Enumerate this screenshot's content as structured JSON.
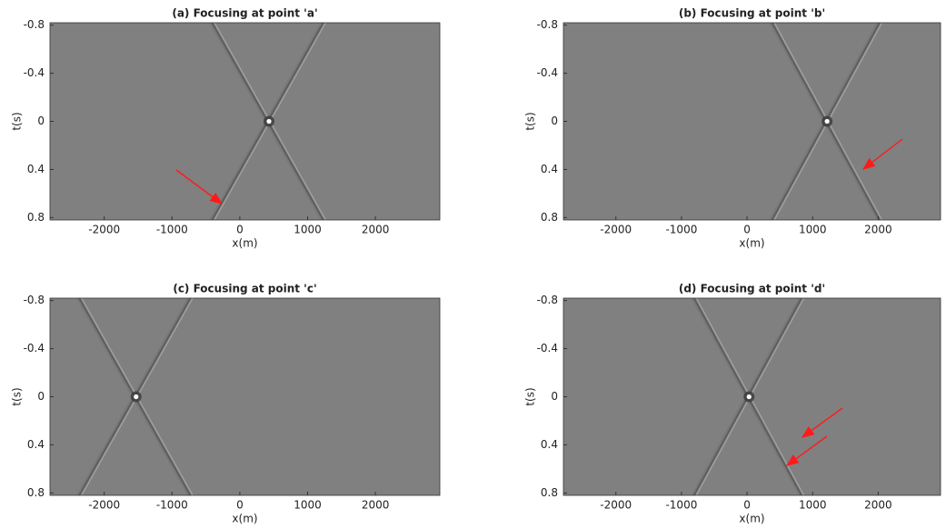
{
  "chart_data": [
    {
      "type": "image",
      "title": "(a) Focusing at point 'a'",
      "xlabel": "x(m)",
      "ylabel": "t(s)",
      "xlim": [
        -2800,
        2950
      ],
      "ylim": [
        0.82,
        -0.82
      ],
      "xticks": [
        -2000,
        -1000,
        0,
        1000,
        2000
      ],
      "yticks": [
        -0.8,
        -0.4,
        0,
        0.4,
        0.8
      ],
      "focus_x": 430,
      "focus_t": 0
    },
    {
      "type": "image",
      "title": "(b) Focusing at point 'b'",
      "xlabel": "x(m)",
      "ylabel": "t(s)",
      "xlim": [
        -2800,
        2950
      ],
      "ylim": [
        0.82,
        -0.82
      ],
      "xticks": [
        -2000,
        -1000,
        0,
        1000,
        2000
      ],
      "yticks": [
        -0.8,
        -0.4,
        0,
        0.4,
        0.8
      ],
      "focus_x": 1220,
      "focus_t": 0
    },
    {
      "type": "image",
      "title": "(c) Focusing at point 'c'",
      "xlabel": "x(m)",
      "ylabel": "t(s)",
      "xlim": [
        -2800,
        2950
      ],
      "ylim": [
        0.82,
        -0.82
      ],
      "xticks": [
        -2000,
        -1000,
        0,
        1000,
        2000
      ],
      "yticks": [
        -0.8,
        -0.4,
        0,
        0.4,
        0.8
      ],
      "focus_x": -1530,
      "focus_t": 0
    },
    {
      "type": "image",
      "title": "(d) Focusing at point 'd'",
      "xlabel": "x(m)",
      "ylabel": "t(s)",
      "xlim": [
        -2800,
        2950
      ],
      "ylim": [
        0.82,
        -0.82
      ],
      "xticks": [
        -2000,
        -1000,
        0,
        1000,
        2000
      ],
      "yticks": [
        -0.8,
        -0.4,
        0,
        0.4,
        0.8
      ],
      "focus_x": 30,
      "focus_t": 0
    }
  ]
}
